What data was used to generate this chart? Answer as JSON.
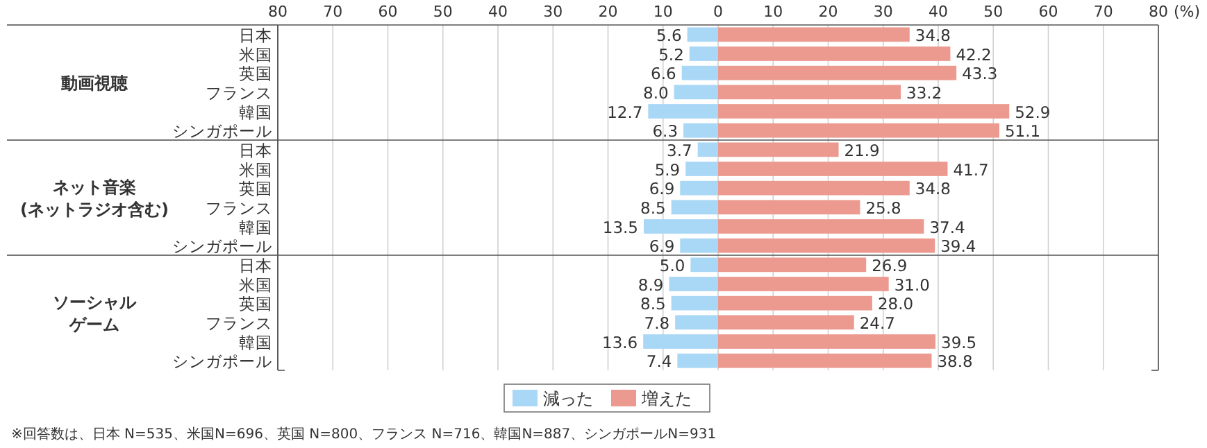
{
  "chart_data": [
    {
      "type": "bar",
      "orientation": "horizontal",
      "ylabel": "動画視聴",
      "xlabel": "(%)",
      "categories": [
        "日本",
        "米国",
        "英国",
        "フランス",
        "韓国",
        "シンガポール"
      ],
      "xlim": [
        -80,
        80
      ],
      "xticks": [
        {
          "value": -80,
          "label": "80"
        },
        {
          "value": -70,
          "label": "70"
        },
        {
          "value": -60,
          "label": "60"
        },
        {
          "value": -50,
          "label": "50"
        },
        {
          "value": -40,
          "label": "40"
        },
        {
          "value": -30,
          "label": "30"
        },
        {
          "value": -20,
          "label": "20"
        },
        {
          "value": -10,
          "label": "10"
        },
        0,
        10,
        20,
        30,
        40,
        50,
        60,
        70,
        80
      ],
      "grid": "x",
      "series": [
        {
          "color": "#a9d7f6",
          "base": [
            -5.6,
            -5.2,
            -6.6,
            -8.0,
            -12.7,
            -6.3
          ],
          "values": [
            5.6,
            5.2,
            6.6,
            8.0,
            12.7,
            6.3
          ],
          "value_labels": [
            "5.6",
            "5.2",
            "6.6",
            "8.0",
            "12.7",
            "6.3"
          ]
        },
        {
          "color": "#ec9a90",
          "values": [
            34.8,
            42.2,
            43.3,
            33.2,
            52.9,
            51.1
          ],
          "value_labels": [
            "34.8",
            "42.2",
            "43.3",
            "33.2",
            "52.9",
            "51.1"
          ]
        }
      ]
    },
    {
      "type": "bar",
      "orientation": "horizontal",
      "ylabel": "ネット音楽\n(ネットラジオ含む)",
      "categories": [
        "日本",
        "米国",
        "英国",
        "フランス",
        "韓国",
        "シンガポール"
      ],
      "xlim": [
        -80,
        80
      ],
      "xticks": [
        -80,
        -70,
        -60,
        -50,
        -40,
        -30,
        -20,
        -10,
        0,
        10,
        20,
        30,
        40,
        50,
        60,
        70,
        80
      ],
      "grid": "x",
      "tick_labels": "y",
      "series": [
        {
          "color": "#a9d7f6",
          "base": [
            -3.7,
            -5.9,
            -6.9,
            -8.5,
            -13.5,
            -6.9
          ],
          "values": [
            3.7,
            5.9,
            6.9,
            8.5,
            13.5,
            6.9
          ],
          "value_labels": [
            "3.7",
            "5.9",
            "6.9",
            "8.5",
            "13.5",
            "6.9"
          ]
        },
        {
          "color": "#ec9a90",
          "values": [
            21.9,
            41.7,
            34.8,
            25.8,
            37.4,
            39.4
          ],
          "value_labels": [
            "21.9",
            "41.7",
            "34.8",
            "25.8",
            "37.4",
            "39.4"
          ]
        }
      ]
    },
    {
      "type": "bar",
      "orientation": "horizontal",
      "ylabel": "ソーシャルゲーム",
      "categories": [
        "日本",
        "米国",
        "英国",
        "フランス",
        "韓国",
        "シンガポール"
      ],
      "xlim": [
        -80,
        80
      ],
      "xticks": [
        -80,
        -70,
        -60,
        -50,
        -40,
        -30,
        -20,
        -10,
        0,
        10,
        20,
        30,
        40,
        50,
        60,
        70,
        80
      ],
      "grid": "x",
      "tick_labels": "y",
      "legend": "bottom",
      "annotations": [
        "※回答数は、日本 N=535、米国N=696、英国 N=800、フランス N=716、韓国N=887、シンガポールN=931"
      ],
      "series": [
        {
          "name": "減った",
          "color": "#a9d7f6",
          "base": [
            -5.0,
            -8.9,
            -8.5,
            -7.8,
            -13.6,
            -7.4
          ],
          "values": [
            5.0,
            8.9,
            8.5,
            7.8,
            13.6,
            7.4
          ],
          "value_labels": [
            "5.0",
            "8.9",
            "8.5",
            "7.8",
            "13.6",
            "7.4"
          ]
        },
        {
          "name": "増えた",
          "color": "#ec9a90",
          "values": [
            26.9,
            31.0,
            28.0,
            24.7,
            39.5,
            38.8
          ],
          "value_labels": [
            "26.9",
            "31.0",
            "28.0",
            "24.7",
            "39.5",
            "38.8"
          ]
        }
      ]
    }
  ]
}
